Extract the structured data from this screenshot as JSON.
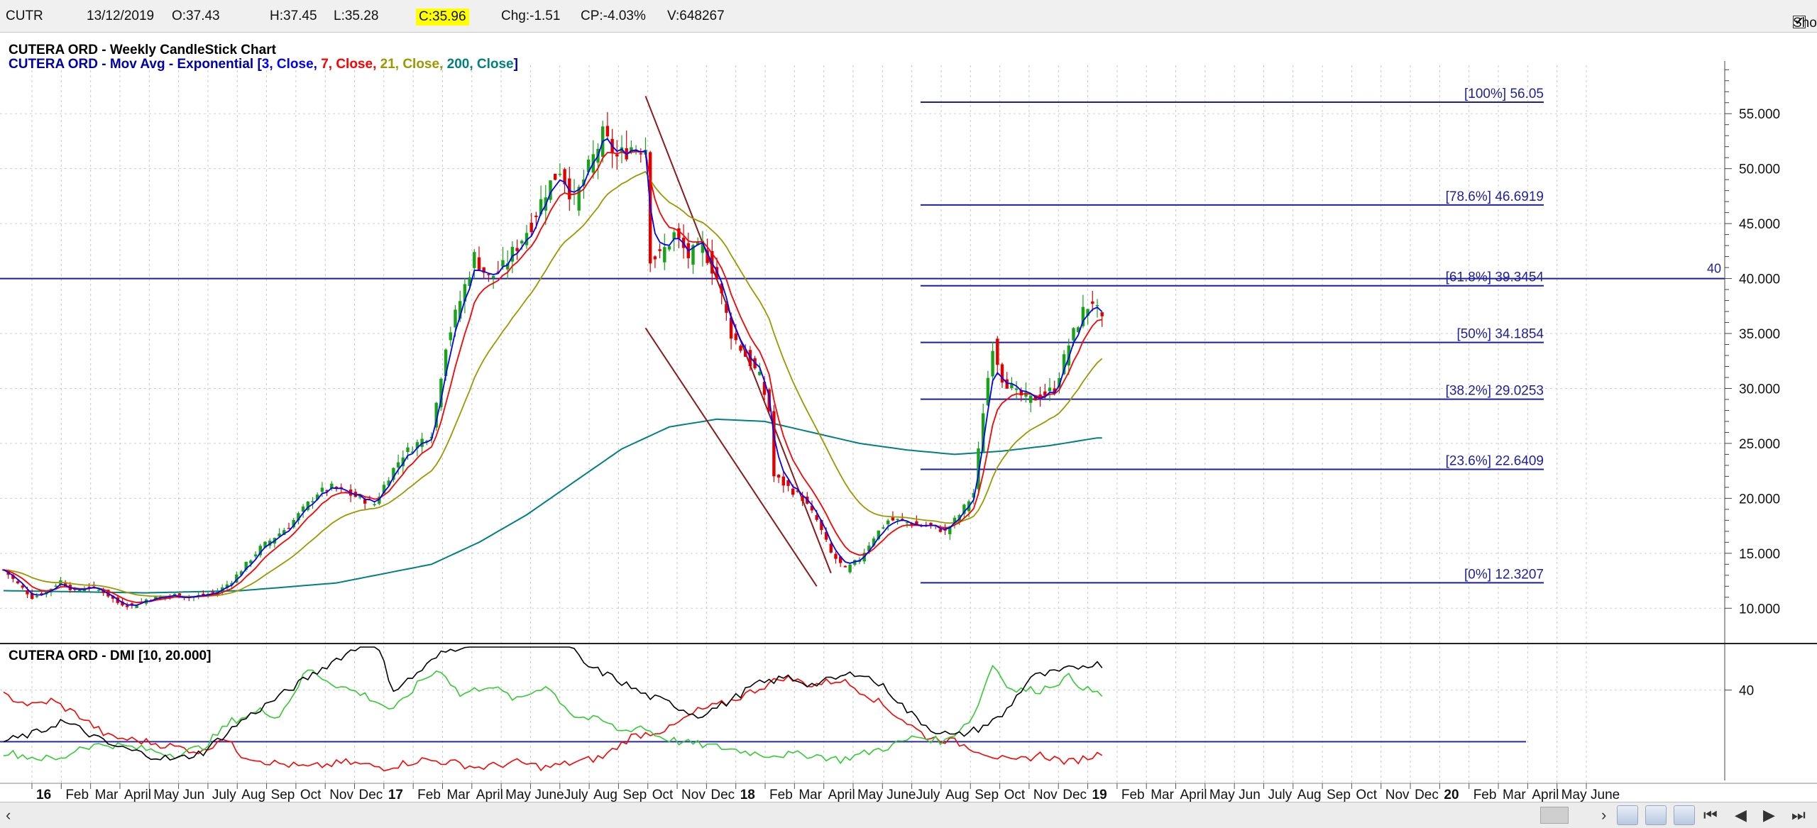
{
  "header": {
    "symbol": "CUTR",
    "date": "13/12/2019",
    "open": "O:37.43",
    "high": "H:37.45",
    "low": "L:35.28",
    "close": "C:35.96",
    "change": "Chg:-1.51",
    "change_pct": "CP:-4.03%",
    "volume": "V:648267",
    "show_last_label": "Show Last",
    "show_last_checked": "✔"
  },
  "chart_data": [
    {
      "type": "candlestick",
      "title": "CUTERA ORD - Weekly CandleStick Chart",
      "subtitle_parts": [
        {
          "text": "CUTERA ORD - Mov Avg - Exponential [",
          "color": "#0000aa"
        },
        {
          "text": "3, Close, ",
          "color": "#0000ff"
        },
        {
          "text": "7, Close, ",
          "color": "#ff0000"
        },
        {
          "text": "21, Close, ",
          "color": "#999900"
        },
        {
          "text": "200, Close",
          "color": "#008080"
        },
        {
          "text": "]",
          "color": "#0000aa"
        }
      ],
      "ylim": [
        7.5,
        58.5
      ],
      "y_ticks": [
        "10.000",
        "15.000",
        "20.000",
        "25.000",
        "30.000",
        "35.000",
        "40.000",
        "45.000",
        "50.000",
        "55.000"
      ],
      "x_labels": [
        "16",
        "Feb",
        "Mar",
        "April",
        "May",
        "Jun",
        "July",
        "Aug",
        "Sep",
        "Oct",
        "Nov",
        "Dec",
        "17",
        "Feb",
        "Mar",
        "April",
        "May",
        "June",
        "July",
        "Aug",
        "Sep",
        "Oct",
        "Nov",
        "Dec",
        "18",
        "Feb",
        "Mar",
        "April",
        "May",
        "June",
        "July",
        "Aug",
        "Sep",
        "Oct",
        "Nov",
        "Dec",
        "19",
        "Feb",
        "Mar",
        "April",
        "May",
        "Jun",
        "July",
        "Aug",
        "Sep",
        "Oct",
        "Nov",
        "Dec",
        "20",
        "Feb",
        "Mar",
        "April",
        "May",
        "June"
      ],
      "price_path": [
        [
          0,
          13.5
        ],
        [
          3,
          12.2
        ],
        [
          6,
          11.0
        ],
        [
          9,
          11.5
        ],
        [
          12,
          12.5
        ],
        [
          15,
          11.5
        ],
        [
          18,
          12.0
        ],
        [
          21,
          11.5
        ],
        [
          24,
          10.5
        ],
        [
          27,
          10.2
        ],
        [
          30,
          10.8
        ],
        [
          33,
          11.0
        ],
        [
          36,
          11.2
        ],
        [
          39,
          11.0
        ],
        [
          42,
          11.2
        ],
        [
          45,
          11.5
        ],
        [
          48,
          12.5
        ],
        [
          51,
          14.0
        ],
        [
          54,
          15.5
        ],
        [
          57,
          16.5
        ],
        [
          60,
          17.5
        ],
        [
          63,
          19.0
        ],
        [
          66,
          20.5
        ],
        [
          69,
          21.0
        ],
        [
          72,
          20.5
        ],
        [
          75,
          20.0
        ],
        [
          78,
          19.5
        ],
        [
          81,
          22.0
        ],
        [
          84,
          24.0
        ],
        [
          87,
          25.0
        ],
        [
          90,
          26.0
        ],
        [
          93,
          34.0
        ],
        [
          96,
          38.0
        ],
        [
          99,
          42.0
        ],
        [
          102,
          40.0
        ],
        [
          105,
          41.0
        ],
        [
          108,
          43.0
        ],
        [
          111,
          45.0
        ],
        [
          114,
          48.0
        ],
        [
          117,
          50.0
        ],
        [
          120,
          47.0
        ],
        [
          123,
          50.0
        ],
        [
          126,
          53.0
        ],
        [
          129,
          51.0
        ],
        [
          132,
          52.0
        ],
        [
          135,
          52.0
        ],
        [
          136,
          42.0
        ],
        [
          138,
          42.0
        ],
        [
          141,
          44.0
        ],
        [
          144,
          42.0
        ],
        [
          147,
          43.0
        ],
        [
          150,
          40.0
        ],
        [
          153,
          35.0
        ],
        [
          156,
          33.0
        ],
        [
          159,
          31.0
        ],
        [
          161,
          28.0
        ],
        [
          162,
          22.0
        ],
        [
          165,
          21.0
        ],
        [
          168,
          20.0
        ],
        [
          171,
          18.0
        ],
        [
          174,
          15.0
        ],
        [
          177,
          13.5
        ],
        [
          180,
          14.5
        ],
        [
          183,
          16.5
        ],
        [
          186,
          18.0
        ],
        [
          189,
          18.0
        ],
        [
          192,
          17.5
        ],
        [
          195,
          17.5
        ],
        [
          198,
          17.0
        ],
        [
          201,
          18.5
        ],
        [
          204,
          20.5
        ],
        [
          206,
          28.0
        ],
        [
          208,
          34.0
        ],
        [
          210,
          31.0
        ],
        [
          213,
          29.5
        ],
        [
          216,
          29.0
        ],
        [
          219,
          29.5
        ],
        [
          221,
          30.0
        ],
        [
          224,
          34.0
        ],
        [
          227,
          37.0
        ],
        [
          229,
          38.0
        ],
        [
          231,
          35.96
        ]
      ],
      "ema200_path": [
        [
          0,
          11.6
        ],
        [
          30,
          11.4
        ],
        [
          50,
          11.6
        ],
        [
          70,
          12.3
        ],
        [
          90,
          14.0
        ],
        [
          100,
          16.0
        ],
        [
          110,
          18.5
        ],
        [
          120,
          21.5
        ],
        [
          130,
          24.5
        ],
        [
          140,
          26.5
        ],
        [
          150,
          27.2
        ],
        [
          160,
          27.0
        ],
        [
          170,
          26.0
        ],
        [
          180,
          25.0
        ],
        [
          190,
          24.4
        ],
        [
          200,
          24.0
        ],
        [
          210,
          24.3
        ],
        [
          220,
          24.8
        ],
        [
          230,
          25.5
        ]
      ],
      "horizontal_line": {
        "value": 40.0,
        "label": "40",
        "color": "#1f1f9f"
      },
      "fibonacci": {
        "color": "#1f1f9f",
        "levels": [
          {
            "pct": "100%",
            "value": 56.05,
            "label": "[100%] 56.05"
          },
          {
            "pct": "78.6%",
            "value": 46.6919,
            "label": "[78.6%] 46.6919"
          },
          {
            "pct": "61.8%",
            "value": 39.3454,
            "label": "[61.8%] 39.3454"
          },
          {
            "pct": "50%",
            "value": 34.1854,
            "label": "[50%] 34.1854"
          },
          {
            "pct": "38.2%",
            "value": 29.0253,
            "label": "[38.2%] 29.0253"
          },
          {
            "pct": "23.6%",
            "value": 22.6409,
            "label": "[23.6%] 22.6409"
          },
          {
            "pct": "0%",
            "value": 12.3207,
            "label": "[0%] 12.3207"
          }
        ]
      },
      "channel_lines": {
        "color": "#8b1a1a",
        "lines": [
          [
            [
              135,
              56.6
            ],
            [
              174,
              13.2
            ]
          ],
          [
            [
              135,
              35.5
            ],
            [
              171,
              12.0
            ]
          ]
        ]
      },
      "series_colors": {
        "ema3": "#0000ff",
        "ema7": "#ff0000",
        "ema21": "#999900",
        "ema200": "#008080"
      }
    },
    {
      "type": "line",
      "title": "CUTERA ORD - DMI [10, 20.000]",
      "ylim": [
        5,
        55
      ],
      "y_ticks": [
        "40"
      ],
      "reference_line": 20,
      "series_colors": {
        "adx": "#000000",
        "plus_di": "#33cc33",
        "minus_di": "#ff0000"
      },
      "adx_path": [
        [
          0,
          20
        ],
        [
          8,
          24
        ],
        [
          12,
          28
        ],
        [
          16,
          25
        ],
        [
          22,
          19
        ],
        [
          30,
          15
        ],
        [
          36,
          13
        ],
        [
          42,
          16
        ],
        [
          50,
          28
        ],
        [
          60,
          40
        ],
        [
          70,
          52
        ],
        [
          78,
          60
        ],
        [
          82,
          40
        ],
        [
          86,
          45
        ],
        [
          92,
          54
        ],
        [
          100,
          60
        ],
        [
          118,
          60
        ],
        [
          122,
          50
        ],
        [
          128,
          45
        ],
        [
          135,
          38
        ],
        [
          140,
          35
        ],
        [
          146,
          30
        ],
        [
          152,
          35
        ],
        [
          158,
          42
        ],
        [
          165,
          45
        ],
        [
          170,
          42
        ],
        [
          180,
          47
        ],
        [
          186,
          40
        ],
        [
          190,
          32
        ],
        [
          195,
          25
        ],
        [
          200,
          22
        ],
        [
          205,
          25
        ],
        [
          210,
          30
        ],
        [
          216,
          45
        ],
        [
          222,
          47
        ],
        [
          228,
          50
        ],
        [
          231,
          50
        ]
      ],
      "plus_di_path": [
        [
          0,
          16
        ],
        [
          6,
          14
        ],
        [
          12,
          13
        ],
        [
          16,
          18
        ],
        [
          22,
          19
        ],
        [
          30,
          17
        ],
        [
          36,
          15
        ],
        [
          42,
          18
        ],
        [
          48,
          28
        ],
        [
          54,
          32
        ],
        [
          58,
          30
        ],
        [
          64,
          48
        ],
        [
          70,
          42
        ],
        [
          76,
          38
        ],
        [
          82,
          32
        ],
        [
          88,
          44
        ],
        [
          92,
          48
        ],
        [
          96,
          38
        ],
        [
          102,
          42
        ],
        [
          108,
          36
        ],
        [
          114,
          42
        ],
        [
          120,
          30
        ],
        [
          126,
          28
        ],
        [
          130,
          24
        ],
        [
          134,
          26
        ],
        [
          138,
          22
        ],
        [
          142,
          20
        ],
        [
          150,
          18
        ],
        [
          160,
          15
        ],
        [
          170,
          15
        ],
        [
          176,
          13
        ],
        [
          180,
          15
        ],
        [
          186,
          18
        ],
        [
          192,
          22
        ],
        [
          198,
          20
        ],
        [
          204,
          30
        ],
        [
          208,
          50
        ],
        [
          212,
          40
        ],
        [
          218,
          40
        ],
        [
          224,
          45
        ],
        [
          228,
          40
        ],
        [
          231,
          38
        ]
      ],
      "minus_di_path": [
        [
          0,
          38
        ],
        [
          6,
          34
        ],
        [
          10,
          36
        ],
        [
          16,
          30
        ],
        [
          22,
          22
        ],
        [
          30,
          20
        ],
        [
          36,
          18
        ],
        [
          42,
          16
        ],
        [
          46,
          22
        ],
        [
          50,
          15
        ],
        [
          56,
          12
        ],
        [
          64,
          10
        ],
        [
          72,
          12
        ],
        [
          80,
          10
        ],
        [
          88,
          13
        ],
        [
          94,
          12
        ],
        [
          100,
          10
        ],
        [
          108,
          12
        ],
        [
          114,
          10
        ],
        [
          120,
          12
        ],
        [
          126,
          14
        ],
        [
          132,
          22
        ],
        [
          140,
          25
        ],
        [
          146,
          32
        ],
        [
          152,
          35
        ],
        [
          158,
          40
        ],
        [
          164,
          45
        ],
        [
          170,
          42
        ],
        [
          176,
          44
        ],
        [
          182,
          38
        ],
        [
          188,
          30
        ],
        [
          194,
          22
        ],
        [
          200,
          20
        ],
        [
          206,
          16
        ],
        [
          212,
          12
        ],
        [
          218,
          15
        ],
        [
          224,
          12
        ],
        [
          230,
          15
        ],
        [
          231,
          16
        ]
      ]
    }
  ],
  "scrollbar": {
    "left_arrow": "‹",
    "right_arrow": "›",
    "nav_buttons": [
      "⏮",
      "◀",
      "▶",
      "⏭"
    ]
  }
}
